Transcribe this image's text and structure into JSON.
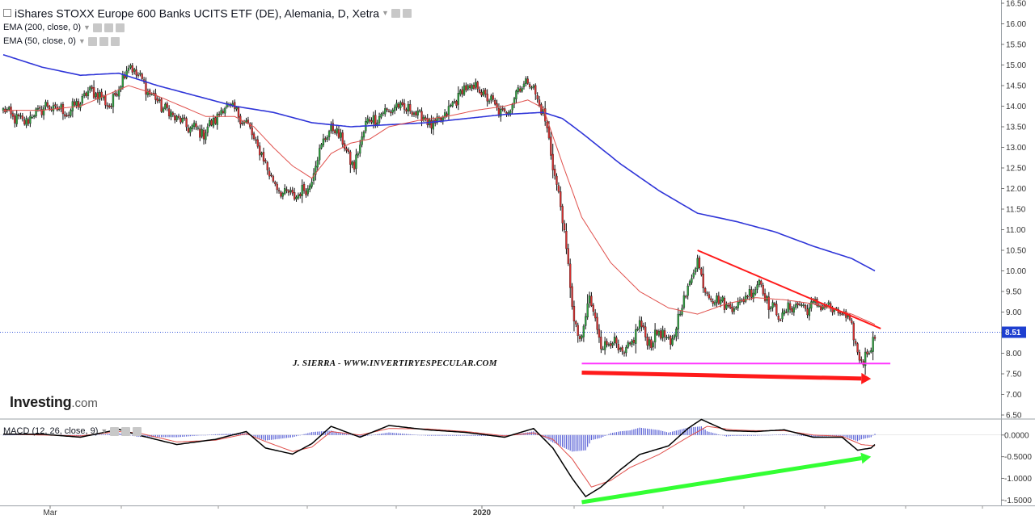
{
  "header": {
    "title": "iShares STOXX Europe 600 Banks UCITS ETF (DE), Alemania, D, Xetra",
    "indicators": [
      "EMA (200, close, 0)",
      "EMA (50, close, 0)"
    ],
    "macd_label": "MACD (12, 26, close, 9)"
  },
  "branding": {
    "logo_bold": "Investing",
    "logo_suffix": ".com",
    "watermark": "J. SIERRA - WWW.INVERTIRYESPECULAR.COM"
  },
  "icons": [
    "settings-icon",
    "eye-icon",
    "close-icon",
    "chevron-down-icon"
  ],
  "colors": {
    "up_candle": "#2e9e3f",
    "down_candle": "#d32f2f",
    "wick": "#111111",
    "ema200": "#2f35d8",
    "ema50": "#e0504c",
    "trendline": "#ff1a1a",
    "support": "#ff33ff",
    "arrow_red": "#ff1a1a",
    "arrow_green": "#33ff33",
    "macd_line": "#000000",
    "signal_line": "#e0504c",
    "histogram": "#5b63d6",
    "price_line": "#3b5bdb",
    "price_badge": "#1e3fd0"
  },
  "chart_data": [
    {
      "type": "candlestick",
      "title": "iShares STOXX Europe 600 Banks UCITS ETF (DE), Alemania, D, Xetra",
      "x_labels": [
        "Mar",
        "2020"
      ],
      "y_ticks": [
        "16.50",
        "16.00",
        "15.50",
        "15.00",
        "14.50",
        "14.00",
        "13.50",
        "13.00",
        "12.50",
        "12.00",
        "11.50",
        "11.00",
        "10.50",
        "10.00",
        "9.50",
        "9.00",
        "8.50",
        "8.00",
        "7.50",
        "7.00",
        "6.50"
      ],
      "ylim": [
        6.5,
        16.5
      ],
      "current_price": "8.51",
      "price_anchors": [
        [
          0,
          13.9
        ],
        [
          10,
          13.6
        ],
        [
          22,
          14.0
        ],
        [
          34,
          13.85
        ],
        [
          46,
          14.4
        ],
        [
          56,
          14.0
        ],
        [
          62,
          14.75
        ],
        [
          66,
          15.0
        ],
        [
          74,
          14.45
        ],
        [
          82,
          14.0
        ],
        [
          94,
          13.55
        ],
        [
          104,
          13.35
        ],
        [
          116,
          14.05
        ],
        [
          126,
          13.6
        ],
        [
          130,
          13.2
        ],
        [
          136,
          12.6
        ],
        [
          142,
          12.0
        ],
        [
          150,
          11.8
        ],
        [
          158,
          12.0
        ],
        [
          166,
          13.2
        ],
        [
          172,
          13.5
        ],
        [
          178,
          12.9
        ],
        [
          182,
          12.5
        ],
        [
          188,
          13.6
        ],
        [
          196,
          13.8
        ],
        [
          204,
          14.0
        ],
        [
          214,
          13.85
        ],
        [
          224,
          13.5
        ],
        [
          232,
          13.95
        ],
        [
          238,
          14.4
        ],
        [
          246,
          14.45
        ],
        [
          252,
          14.15
        ],
        [
          260,
          13.75
        ],
        [
          266,
          14.35
        ],
        [
          272,
          14.65
        ],
        [
          276,
          14.3
        ],
        [
          280,
          13.8
        ],
        [
          283,
          13.2
        ],
        [
          286,
          12.3
        ],
        [
          290,
          11.3
        ],
        [
          293,
          10.1
        ],
        [
          296,
          8.7
        ],
        [
          300,
          8.3
        ],
        [
          304,
          9.4
        ],
        [
          310,
          8.2
        ],
        [
          316,
          8.3
        ],
        [
          322,
          7.9
        ],
        [
          330,
          8.7
        ],
        [
          336,
          8.2
        ],
        [
          340,
          8.6
        ],
        [
          346,
          8.15
        ],
        [
          352,
          9.2
        ],
        [
          356,
          9.7
        ],
        [
          360,
          10.3
        ],
        [
          364,
          9.5
        ],
        [
          370,
          9.3
        ],
        [
          378,
          9.1
        ],
        [
          386,
          9.4
        ],
        [
          392,
          9.75
        ],
        [
          398,
          9.1
        ],
        [
          404,
          8.9
        ],
        [
          410,
          9.2
        ],
        [
          416,
          9.1
        ],
        [
          424,
          9.2
        ],
        [
          432,
          9.0
        ],
        [
          438,
          8.85
        ],
        [
          440,
          8.6
        ],
        [
          443,
          7.95
        ],
        [
          446,
          7.85
        ],
        [
          450,
          8.15
        ],
        [
          452,
          8.5
        ]
      ],
      "ema200_anchors": [
        [
          0,
          15.25
        ],
        [
          20,
          14.95
        ],
        [
          40,
          14.75
        ],
        [
          60,
          14.8
        ],
        [
          80,
          14.5
        ],
        [
          100,
          14.25
        ],
        [
          120,
          14.0
        ],
        [
          140,
          13.85
        ],
        [
          160,
          13.6
        ],
        [
          180,
          13.5
        ],
        [
          200,
          13.55
        ],
        [
          220,
          13.6
        ],
        [
          240,
          13.7
        ],
        [
          260,
          13.8
        ],
        [
          280,
          13.85
        ],
        [
          290,
          13.7
        ],
        [
          300,
          13.35
        ],
        [
          320,
          12.6
        ],
        [
          340,
          11.95
        ],
        [
          360,
          11.4
        ],
        [
          380,
          11.2
        ],
        [
          400,
          10.95
        ],
        [
          420,
          10.6
        ],
        [
          440,
          10.3
        ],
        [
          452,
          10.0
        ]
      ],
      "ema50_anchors": [
        [
          0,
          13.9
        ],
        [
          20,
          13.9
        ],
        [
          40,
          14.0
        ],
        [
          55,
          14.3
        ],
        [
          65,
          14.5
        ],
        [
          75,
          14.35
        ],
        [
          90,
          14.05
        ],
        [
          105,
          13.75
        ],
        [
          120,
          13.75
        ],
        [
          130,
          13.5
        ],
        [
          140,
          13.0
        ],
        [
          150,
          12.55
        ],
        [
          160,
          12.25
        ],
        [
          170,
          12.85
        ],
        [
          180,
          13.1
        ],
        [
          190,
          13.2
        ],
        [
          200,
          13.5
        ],
        [
          215,
          13.65
        ],
        [
          230,
          13.75
        ],
        [
          245,
          13.9
        ],
        [
          260,
          14.0
        ],
        [
          272,
          14.15
        ],
        [
          280,
          13.95
        ],
        [
          290,
          12.6
        ],
        [
          300,
          11.3
        ],
        [
          315,
          10.2
        ],
        [
          330,
          9.5
        ],
        [
          345,
          9.1
        ],
        [
          360,
          8.95
        ],
        [
          375,
          9.2
        ],
        [
          390,
          9.35
        ],
        [
          405,
          9.3
        ],
        [
          420,
          9.2
        ],
        [
          440,
          8.95
        ],
        [
          452,
          8.7
        ]
      ],
      "trendline": [
        [
          360,
          10.5
        ],
        [
          455,
          8.6
        ]
      ],
      "support_line": [
        [
          300,
          7.75
        ],
        [
          460,
          7.75
        ]
      ],
      "arrow_red": [
        [
          300,
          7.53
        ],
        [
          450,
          7.38
        ]
      ]
    },
    {
      "type": "line",
      "title": "MACD (12, 26, close, 9)",
      "y_ticks": [
        "0.0000",
        "-0.5000",
        "-1.0000",
        "-1.5000"
      ],
      "ylim": [
        -1.55,
        0.35
      ],
      "macd_anchors": [
        [
          0,
          0.02
        ],
        [
          20,
          0.02
        ],
        [
          40,
          -0.05
        ],
        [
          60,
          0.13
        ],
        [
          70,
          0.0
        ],
        [
          90,
          -0.22
        ],
        [
          110,
          -0.1
        ],
        [
          126,
          0.08
        ],
        [
          136,
          -0.3
        ],
        [
          150,
          -0.44
        ],
        [
          160,
          -0.2
        ],
        [
          170,
          0.2
        ],
        [
          185,
          -0.05
        ],
        [
          200,
          0.22
        ],
        [
          220,
          0.12
        ],
        [
          240,
          0.06
        ],
        [
          260,
          -0.05
        ],
        [
          275,
          0.15
        ],
        [
          285,
          -0.3
        ],
        [
          295,
          -1.0
        ],
        [
          302,
          -1.42
        ],
        [
          310,
          -1.2
        ],
        [
          320,
          -0.8
        ],
        [
          330,
          -0.45
        ],
        [
          345,
          -0.25
        ],
        [
          355,
          0.15
        ],
        [
          362,
          0.36
        ],
        [
          375,
          0.1
        ],
        [
          390,
          0.08
        ],
        [
          405,
          0.12
        ],
        [
          420,
          -0.05
        ],
        [
          435,
          -0.05
        ],
        [
          443,
          -0.35
        ],
        [
          450,
          -0.3
        ],
        [
          452,
          -0.22
        ]
      ],
      "signal_anchors": [
        [
          0,
          0.02
        ],
        [
          20,
          0.0
        ],
        [
          40,
          -0.02
        ],
        [
          60,
          0.08
        ],
        [
          70,
          0.05
        ],
        [
          90,
          -0.16
        ],
        [
          110,
          -0.12
        ],
        [
          126,
          0.03
        ],
        [
          136,
          -0.15
        ],
        [
          150,
          -0.38
        ],
        [
          160,
          -0.28
        ],
        [
          170,
          0.08
        ],
        [
          185,
          0.0
        ],
        [
          200,
          0.15
        ],
        [
          220,
          0.14
        ],
        [
          240,
          0.08
        ],
        [
          260,
          -0.02
        ],
        [
          275,
          0.05
        ],
        [
          285,
          -0.1
        ],
        [
          295,
          -0.55
        ],
        [
          305,
          -1.2
        ],
        [
          315,
          -1.05
        ],
        [
          325,
          -0.75
        ],
        [
          340,
          -0.45
        ],
        [
          355,
          -0.05
        ],
        [
          365,
          0.2
        ],
        [
          378,
          0.12
        ],
        [
          390,
          0.1
        ],
        [
          405,
          0.1
        ],
        [
          420,
          0.0
        ],
        [
          435,
          -0.03
        ],
        [
          445,
          -0.22
        ],
        [
          452,
          -0.25
        ]
      ],
      "arrow_green": [
        [
          300,
          -1.55
        ],
        [
          450,
          -0.5
        ]
      ]
    }
  ]
}
